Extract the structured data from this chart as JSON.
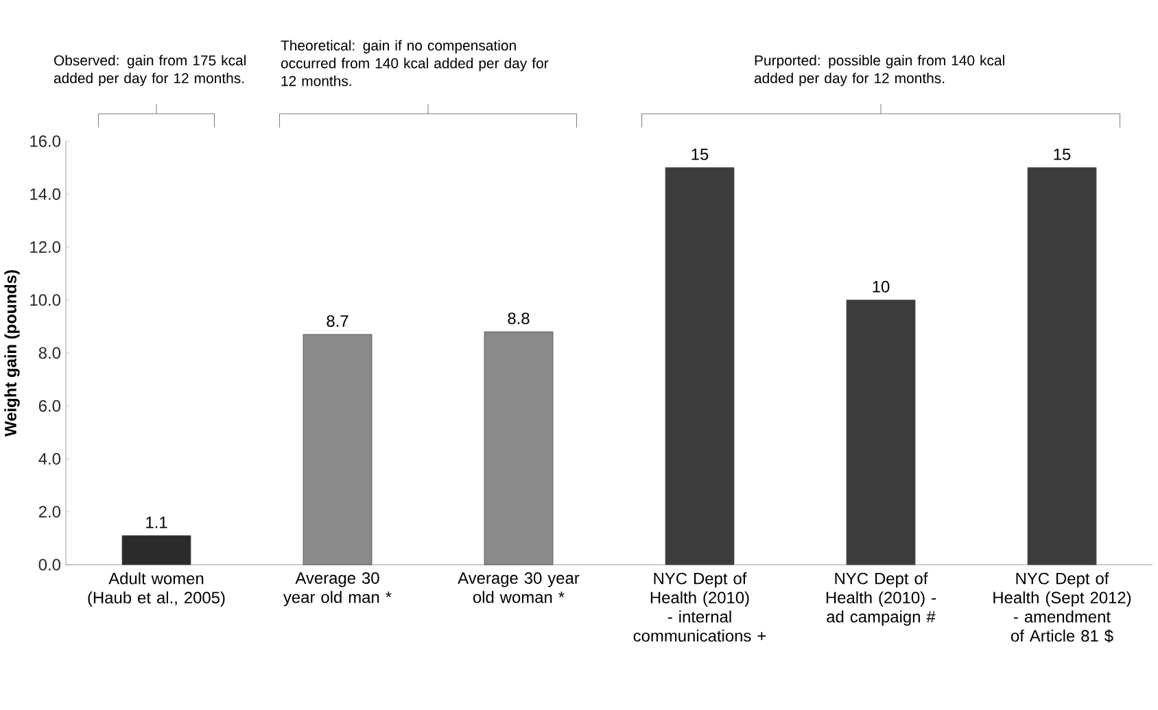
{
  "chart_data": {
    "type": "bar",
    "ylabel": "Weight gain (pounds)",
    "categories": [
      "Adult women (Haub et al., 2005)",
      "Average 30 year old man *",
      "Average 30 year old woman *",
      "NYC Dept of Health (2010) - internal communications +",
      "NYC Dept of Health (2010) - ad campaign #",
      "NYC Dept of Health (Sept 2012) - amendment of Article 81 $"
    ],
    "values": [
      1.1,
      8.7,
      8.8,
      15,
      10,
      15
    ],
    "colors": [
      "#2b2b2b",
      "#8a8a8a",
      "#8a8a8a",
      "#3c3c3c",
      "#3c3c3c",
      "#3c3c3c"
    ],
    "ylim": [
      0,
      16
    ],
    "yticks": [
      {
        "value": 0,
        "label": "0.0"
      },
      {
        "value": 2,
        "label": "2.0"
      },
      {
        "value": 4,
        "label": "4.0"
      },
      {
        "value": 6,
        "label": "6.0"
      },
      {
        "value": 8,
        "label": "8.0"
      },
      {
        "value": 10,
        "label": "10.0"
      },
      {
        "value": 12,
        "label": "12.0"
      },
      {
        "value": 14,
        "label": "14.0"
      },
      {
        "value": 16,
        "label": "16.0"
      }
    ],
    "data_labels": true,
    "grid": false,
    "annotations": [
      "Observed: gain from 175 kcal added per day for 12 months.",
      "Theoretical: gain if no compensation occurred from 140 kcal added per day  for 12 months.",
      "Purported: possible gain from 140 kcal added per day for 12 months."
    ]
  }
}
